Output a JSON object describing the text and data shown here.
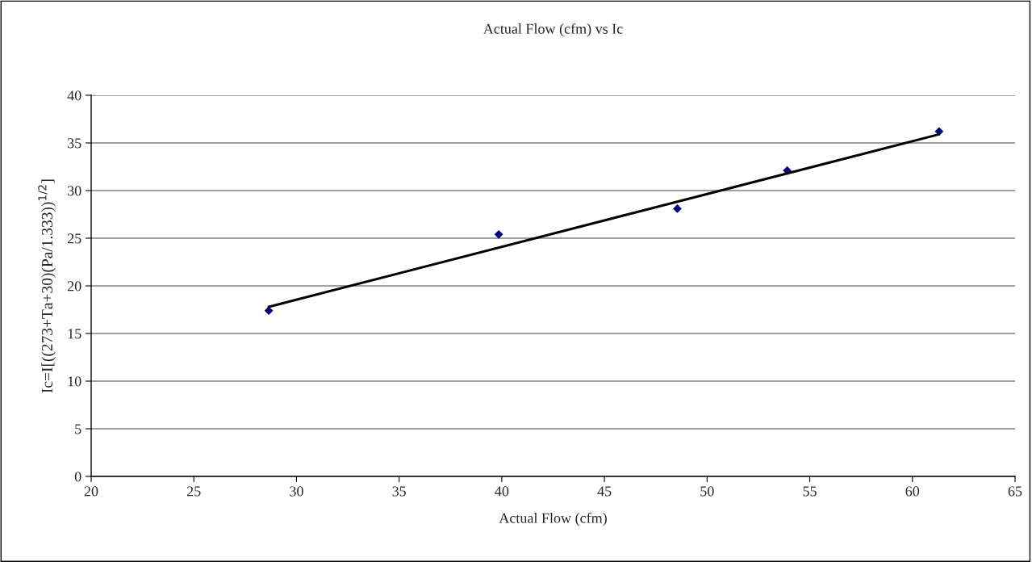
{
  "chart_data": {
    "type": "scatter",
    "title": "Actual Flow (cfm) vs Ic",
    "xlabel": "Actual Flow (cfm)",
    "ylabel": "Ic=I[((273+Ta+30)(Pa/1.333))$^{1/2}$]",
    "series": [
      {
        "color": "#000080",
        "x": [
          28.65,
          39.85,
          48.55,
          53.9,
          61.3
        ],
        "values": [
          17.4,
          25.4,
          28.1,
          32.1,
          36.2
        ],
        "marker": "diamond"
      },
      {
        "type": "line",
        "color": "#000000",
        "x": [
          28.65,
          61.3
        ],
        "values": [
          17.8,
          35.9
        ],
        "marker": "none",
        "line_style": "solid"
      }
    ],
    "xlim": [
      20,
      65
    ],
    "xticks": [
      20,
      25,
      30,
      35,
      40,
      45,
      50,
      55,
      60,
      65
    ],
    "ylim": [
      0,
      40
    ],
    "yticks": [
      0,
      5,
      10,
      15,
      20,
      25,
      30,
      35,
      40
    ],
    "grid": "y",
    "legend": false
  }
}
